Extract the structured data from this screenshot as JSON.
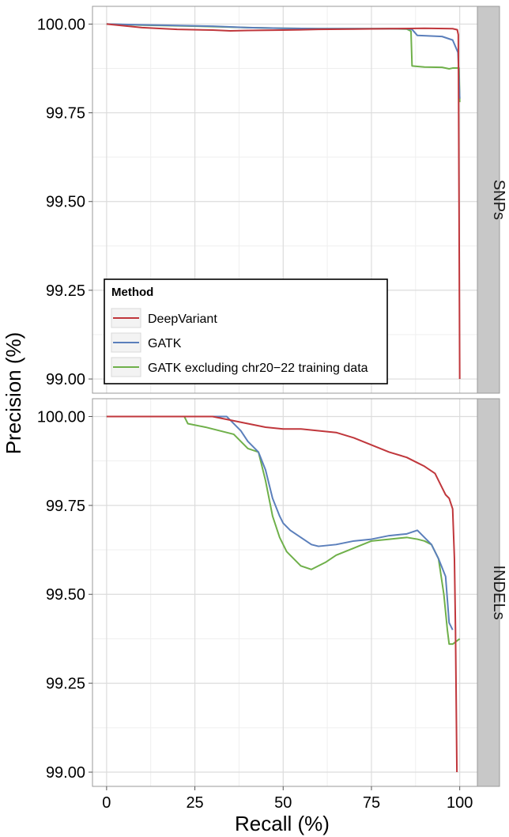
{
  "chart_data": {
    "type": "line",
    "xlabel": "Recall (%)",
    "ylabel": "Precision (%)",
    "xlim": [
      -4,
      105
    ],
    "x_ticks": [
      0,
      25,
      50,
      75,
      100
    ],
    "x_tick_labels": [
      "0",
      "25",
      "50",
      "75",
      "100"
    ],
    "grid": true,
    "legend": {
      "title": "Method",
      "placement": "bottom-left inside top panel",
      "entries": [
        "DeepVariant",
        "GATK",
        "GATK excluding chr20−22 training data"
      ]
    },
    "colors": {
      "DeepVariant": "#c0373c",
      "GATK": "#5b7fbb",
      "GATK excluding chr20−22 training data": "#6fb04a",
      "panel_background": "#ffffff",
      "grid_major": "#dcdcdc",
      "grid_minor": "#efefef",
      "strip": "#c8c8c8"
    },
    "panels": [
      {
        "label": "SNPs",
        "ylim": [
          98.96,
          100.05
        ],
        "y_ticks": [
          99.0,
          99.25,
          99.5,
          99.75,
          100.0
        ],
        "y_tick_labels": [
          "99.00",
          "99.25",
          "99.50",
          "99.75",
          "100.00"
        ],
        "series": [
          {
            "name": "DeepVariant",
            "points": [
              [
                0,
                100.0
              ],
              [
                10,
                99.99
              ],
              [
                20,
                99.985
              ],
              [
                30,
                99.983
              ],
              [
                35,
                99.981
              ],
              [
                40,
                99.982
              ],
              [
                50,
                99.983
              ],
              [
                60,
                99.985
              ],
              [
                70,
                99.986
              ],
              [
                80,
                99.987
              ],
              [
                90,
                99.988
              ],
              [
                98,
                99.987
              ],
              [
                99.3,
                99.984
              ],
              [
                99.6,
                99.97
              ],
              [
                99.8,
                99.5
              ],
              [
                100,
                99.0
              ]
            ]
          },
          {
            "name": "GATK",
            "points": [
              [
                0,
                100.0
              ],
              [
                10,
                99.998
              ],
              [
                20,
                99.996
              ],
              [
                30,
                99.994
              ],
              [
                40,
                99.99
              ],
              [
                50,
                99.988
              ],
              [
                60,
                99.987
              ],
              [
                70,
                99.987
              ],
              [
                80,
                99.987
              ],
              [
                85,
                99.987
              ],
              [
                86.5,
                99.985
              ],
              [
                88,
                99.968
              ],
              [
                95,
                99.965
              ],
              [
                98,
                99.955
              ],
              [
                99.5,
                99.92
              ],
              [
                100,
                99.79
              ]
            ]
          },
          {
            "name": "GATK excluding chr20−22 training data",
            "points": [
              [
                0,
                100.0
              ],
              [
                10,
                99.997
              ],
              [
                20,
                99.995
              ],
              [
                30,
                99.993
              ],
              [
                40,
                99.99
              ],
              [
                50,
                99.988
              ],
              [
                60,
                99.987
              ],
              [
                70,
                99.987
              ],
              [
                80,
                99.987
              ],
              [
                85,
                99.986
              ],
              [
                86.2,
                99.98
              ],
              [
                86.5,
                99.882
              ],
              [
                90,
                99.879
              ],
              [
                95,
                99.878
              ],
              [
                97,
                99.874
              ],
              [
                98,
                99.876
              ],
              [
                99.8,
                99.876
              ],
              [
                100,
                99.78
              ]
            ]
          }
        ]
      },
      {
        "label": "INDELs",
        "ylim": [
          98.96,
          100.05
        ],
        "y_ticks": [
          99.0,
          99.25,
          99.5,
          99.75,
          100.0
        ],
        "y_tick_labels": [
          "99.00",
          "99.25",
          "99.50",
          "99.75",
          "100.00"
        ],
        "series": [
          {
            "name": "DeepVariant",
            "points": [
              [
                0,
                100.0
              ],
              [
                30,
                100.0
              ],
              [
                35,
                99.99
              ],
              [
                40,
                99.98
              ],
              [
                45,
                99.97
              ],
              [
                50,
                99.965
              ],
              [
                55,
                99.965
              ],
              [
                60,
                99.96
              ],
              [
                65,
                99.955
              ],
              [
                70,
                99.94
              ],
              [
                75,
                99.92
              ],
              [
                80,
                99.9
              ],
              [
                85,
                99.885
              ],
              [
                88,
                99.87
              ],
              [
                90,
                99.86
              ],
              [
                93,
                99.84
              ],
              [
                95,
                99.8
              ],
              [
                96,
                99.78
              ],
              [
                97,
                99.77
              ],
              [
                98,
                99.74
              ],
              [
                98.5,
                99.6
              ],
              [
                98.8,
                99.4
              ],
              [
                99,
                99.2
              ],
              [
                99.2,
                99.0
              ]
            ]
          },
          {
            "name": "GATK",
            "points": [
              [
                0,
                100.0
              ],
              [
                34,
                100.0
              ],
              [
                36,
                99.98
              ],
              [
                38,
                99.96
              ],
              [
                40,
                99.93
              ],
              [
                43,
                99.9
              ],
              [
                45,
                99.85
              ],
              [
                47,
                99.77
              ],
              [
                49,
                99.72
              ],
              [
                50,
                99.7
              ],
              [
                52,
                99.68
              ],
              [
                55,
                99.66
              ],
              [
                58,
                99.64
              ],
              [
                60,
                99.635
              ],
              [
                65,
                99.64
              ],
              [
                70,
                99.65
              ],
              [
                75,
                99.655
              ],
              [
                80,
                99.665
              ],
              [
                85,
                99.67
              ],
              [
                88,
                99.68
              ],
              [
                90,
                99.66
              ],
              [
                92,
                99.64
              ],
              [
                94,
                99.6
              ],
              [
                96,
                99.55
              ],
              [
                97,
                99.42
              ],
              [
                98,
                99.4
              ]
            ]
          },
          {
            "name": "GATK excluding chr20−22 training data",
            "points": [
              [
                0,
                100.0
              ],
              [
                22,
                100.0
              ],
              [
                23,
                99.98
              ],
              [
                28,
                99.97
              ],
              [
                32,
                99.96
              ],
              [
                36,
                99.95
              ],
              [
                40,
                99.91
              ],
              [
                43,
                99.9
              ],
              [
                45,
                99.82
              ],
              [
                47,
                99.72
              ],
              [
                49,
                99.66
              ],
              [
                51,
                99.62
              ],
              [
                53,
                99.6
              ],
              [
                55,
                99.58
              ],
              [
                58,
                99.57
              ],
              [
                62,
                99.59
              ],
              [
                65,
                99.61
              ],
              [
                70,
                99.63
              ],
              [
                75,
                99.65
              ],
              [
                80,
                99.655
              ],
              [
                85,
                99.66
              ],
              [
                88,
                99.655
              ],
              [
                90,
                99.65
              ],
              [
                92,
                99.64
              ],
              [
                94,
                99.6
              ],
              [
                95.5,
                99.5
              ],
              [
                96.5,
                99.4
              ],
              [
                97,
                99.36
              ],
              [
                98,
                99.36
              ],
              [
                100,
                99.375
              ]
            ]
          }
        ]
      }
    ]
  }
}
